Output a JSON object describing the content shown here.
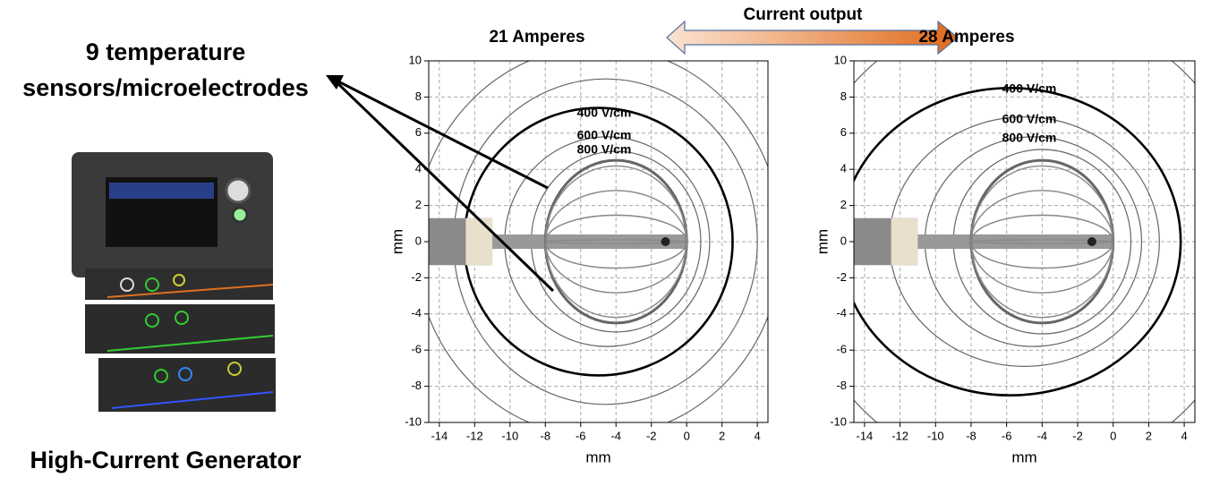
{
  "figure": {
    "sensor_label": [
      "9 temperature",
      "sensors/microelectrodes"
    ],
    "generator_label": "High-Current Generator",
    "arrow_label": "Current output"
  },
  "chart_data": [
    {
      "type": "contour",
      "title": "21 Amperes",
      "xlabel": "mm",
      "ylabel": "mm",
      "xlim": [
        -14.6,
        4.6
      ],
      "ylim": [
        -10,
        10
      ],
      "xticks": [
        -14,
        -12,
        -10,
        -8,
        -6,
        -4,
        -2,
        0,
        2,
        4
      ],
      "yticks": [
        -10,
        -8,
        -6,
        -4,
        -2,
        0,
        2,
        4,
        6,
        8,
        10
      ],
      "grid": true,
      "contour_labels": [
        "400 V/cm",
        "600 V/cm",
        "800 V/cm"
      ]
    },
    {
      "type": "contour",
      "title": "28 Amperes",
      "xlabel": "mm",
      "ylabel": "mm",
      "xlim": [
        -14.6,
        4.6
      ],
      "ylim": [
        -10,
        10
      ],
      "xticks": [
        -14,
        -12,
        -10,
        -8,
        -6,
        -4,
        -2,
        0,
        2,
        4
      ],
      "yticks": [
        -10,
        -8,
        -6,
        -4,
        -2,
        0,
        2,
        4,
        6,
        8,
        10
      ],
      "grid": true,
      "contour_labels": [
        "400 V/cm",
        "600 V/cm",
        "800 V/cm"
      ]
    }
  ]
}
